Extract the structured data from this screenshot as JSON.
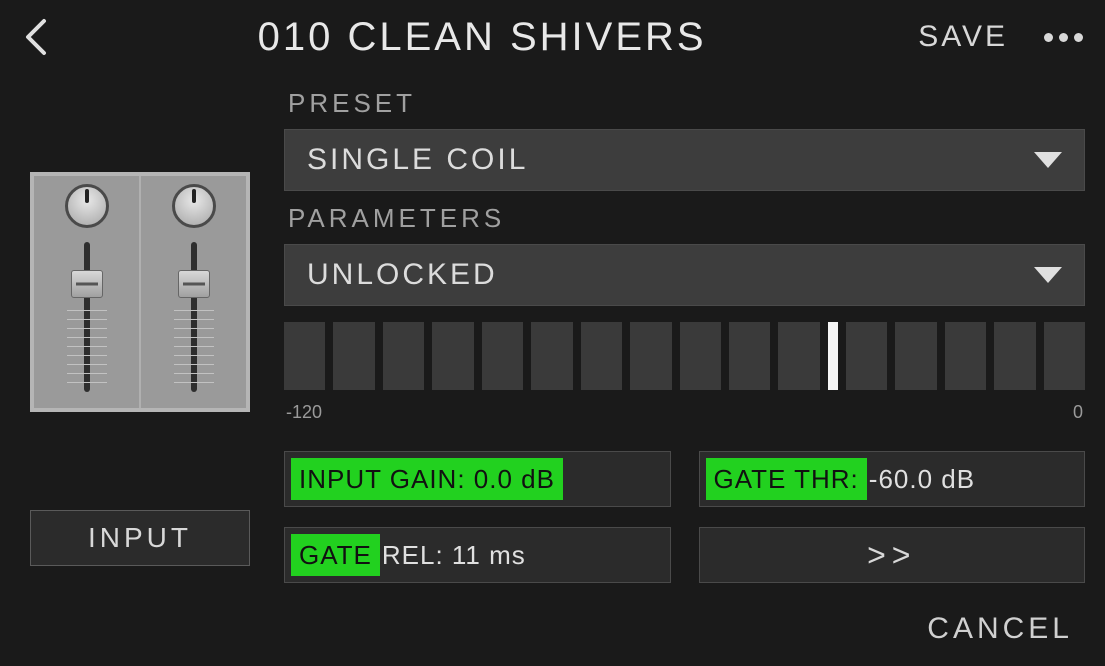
{
  "header": {
    "title": "010 CLEAN SHIVERS",
    "save_label": "SAVE"
  },
  "left": {
    "input_label": "INPUT"
  },
  "preset": {
    "label": "PRESET",
    "value": "SINGLE COIL"
  },
  "parameters": {
    "label": "PARAMETERS",
    "value": "UNLOCKED"
  },
  "meter": {
    "segments": 16,
    "active_index": 10,
    "scale_min": "-120",
    "scale_max": "0"
  },
  "params": {
    "input_gain": {
      "hl": "INPUT GAIN: 0.0 dB",
      "rest": ""
    },
    "gate_thr": {
      "hl": "GATE THR:",
      "rest": " -60.0 dB"
    },
    "gate_rel": {
      "hl": "GATE ",
      "rest": "REL: 11 ms"
    },
    "next_label": ">>"
  },
  "footer": {
    "cancel_label": "CANCEL"
  },
  "colors": {
    "bg": "#1a1a1a",
    "panel": "#2b2b2b",
    "dropdown": "#3d3d3d",
    "highlight": "#22d11f",
    "text": "#d8d8d8"
  }
}
